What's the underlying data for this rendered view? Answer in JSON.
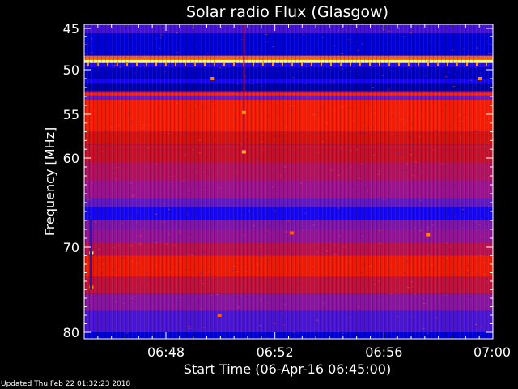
{
  "chart_data": {
    "type": "heatmap",
    "title": "Solar radio Flux (Glasgow)",
    "xlabel": "Start Time (06-Apr-16 06:45:00)",
    "ylabel": "Frequency [MHz]",
    "x_range_minutes": [
      0,
      15
    ],
    "y_range_mhz": [
      45,
      80
    ],
    "y_ticks": [
      45,
      50,
      55,
      60,
      70,
      80
    ],
    "y_tick_labels": [
      "45",
      "50",
      "55",
      "60",
      "70",
      "80"
    ],
    "x_ticks_minutes": [
      3,
      7,
      11,
      15
    ],
    "x_tick_labels": [
      "06:48",
      "06:52",
      "06:56",
      "07:00"
    ],
    "colormap": [
      "#00007a",
      "#0000ff",
      "#5a18c8",
      "#a0128a",
      "#d01010",
      "#ff2000",
      "#ff8800",
      "#ffff80"
    ],
    "frequency_bands": [
      {
        "from": 45.0,
        "to": 45.6,
        "level": 0.25
      },
      {
        "from": 45.6,
        "to": 48.3,
        "level": 0.1
      },
      {
        "from": 48.3,
        "to": 48.8,
        "level": 0.8
      },
      {
        "from": 48.8,
        "to": 49.2,
        "level": 1.0
      },
      {
        "from": 49.2,
        "to": 49.7,
        "level": 0.2
      },
      {
        "from": 49.7,
        "to": 51.0,
        "level": 0.08
      },
      {
        "from": 51.0,
        "to": 51.6,
        "level": 0.18
      },
      {
        "from": 51.6,
        "to": 52.4,
        "level": 0.05
      },
      {
        "from": 52.4,
        "to": 52.6,
        "level": 0.45
      },
      {
        "from": 52.6,
        "to": 52.9,
        "level": 0.72
      },
      {
        "from": 52.9,
        "to": 53.4,
        "level": 0.35
      },
      {
        "from": 53.4,
        "to": 57.0,
        "level": 0.68
      },
      {
        "from": 57.0,
        "to": 58.5,
        "level": 0.58
      },
      {
        "from": 58.5,
        "to": 60.5,
        "level": 0.54
      },
      {
        "from": 60.5,
        "to": 62.5,
        "level": 0.48
      },
      {
        "from": 62.5,
        "to": 64.5,
        "level": 0.42
      },
      {
        "from": 64.5,
        "to": 65.5,
        "level": 0.3
      },
      {
        "from": 65.5,
        "to": 67.0,
        "level": 0.18
      },
      {
        "from": 67.0,
        "to": 68.0,
        "level": 0.36
      },
      {
        "from": 68.0,
        "to": 69.5,
        "level": 0.4
      },
      {
        "from": 69.5,
        "to": 71.0,
        "level": 0.5
      },
      {
        "from": 71.0,
        "to": 73.5,
        "level": 0.66
      },
      {
        "from": 73.5,
        "to": 75.5,
        "level": 0.52
      },
      {
        "from": 75.5,
        "to": 77.5,
        "level": 0.38
      },
      {
        "from": 77.5,
        "to": 80.0,
        "level": 0.26
      }
    ],
    "highlights": [
      {
        "minute": 5.85,
        "mhz": 54.8,
        "level": 0.88
      },
      {
        "minute": 5.85,
        "mhz": 59.3,
        "level": 0.9
      },
      {
        "minute": 4.7,
        "mhz": 51.0,
        "level": 0.85
      },
      {
        "minute": 14.5,
        "mhz": 51.0,
        "level": 0.85
      },
      {
        "minute": 0.25,
        "mhz": 70.7,
        "level": 0.98
      },
      {
        "minute": 0.25,
        "mhz": 74.7,
        "level": 0.85
      },
      {
        "minute": 4.95,
        "mhz": 78.0,
        "level": 0.8
      },
      {
        "minute": 12.6,
        "mhz": 68.6,
        "level": 0.85
      },
      {
        "minute": 7.6,
        "mhz": 68.4,
        "level": 0.8
      }
    ]
  },
  "footer": {
    "updated": "Updated Thu Feb 22 01:32:23 2018"
  }
}
